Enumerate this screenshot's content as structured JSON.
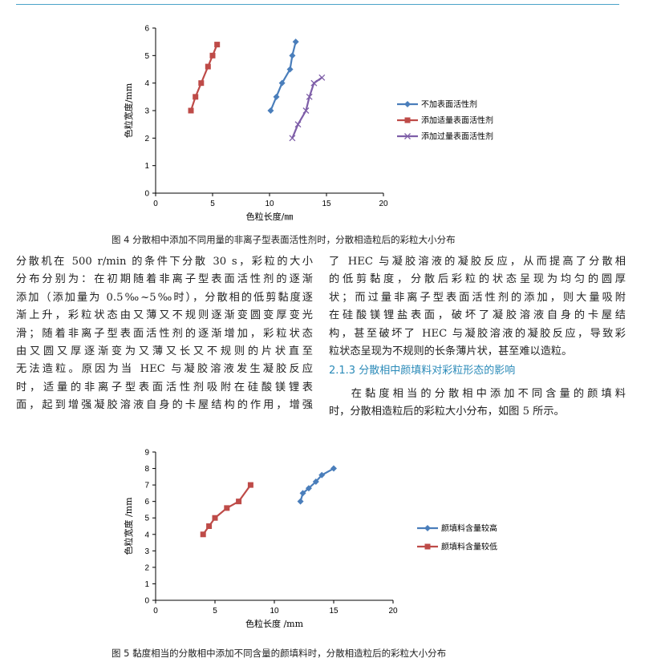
{
  "figure4": {
    "caption": "图 4 分散相中添加不同用量的非离子型表面活性剂时，分散相造粒后的彩粒大小分布",
    "chart_data": {
      "type": "scatter",
      "xlabel": "色粒长度/㎜",
      "ylabel": "色粒宽度/mm",
      "xlim": [
        0,
        20
      ],
      "ylim": [
        0,
        6
      ],
      "xticks": [
        0,
        5,
        10,
        15,
        20
      ],
      "yticks": [
        0,
        1,
        2,
        3,
        4,
        5,
        6
      ],
      "legend_position": "right",
      "grid": false,
      "series": [
        {
          "name": "不加表面活性剂",
          "color": "#4a7ebb",
          "marker": "diamond",
          "x": [
            10.1,
            10.6,
            11.1,
            11.8,
            12.0,
            12.3
          ],
          "y": [
            3.0,
            3.5,
            4.0,
            4.5,
            5.0,
            5.5
          ]
        },
        {
          "name": "添加适量表面活性剂",
          "color": "#be4b48",
          "marker": "square",
          "x": [
            3.1,
            3.5,
            4.0,
            4.6,
            5.0,
            5.4
          ],
          "y": [
            3.0,
            3.5,
            4.0,
            4.6,
            5.0,
            5.4
          ]
        },
        {
          "name": "添加过量表面活性剂",
          "color": "#7e5ea8",
          "marker": "x",
          "x": [
            12.0,
            12.5,
            13.2,
            13.5,
            13.9,
            14.6
          ],
          "y": [
            2.0,
            2.5,
            3.0,
            3.5,
            4.0,
            4.2
          ]
        }
      ]
    }
  },
  "figure5": {
    "caption": "图 5 黏度相当的分散相中添加不同含量的颜填料时，分散相造粒后的彩粒大小分布",
    "chart_data": {
      "type": "scatter",
      "xlabel": "色粒长度 /mm",
      "ylabel": "色粒宽度 /mm",
      "xlim": [
        0,
        20
      ],
      "ylim": [
        0,
        9
      ],
      "xticks": [
        0,
        5,
        10,
        15,
        20
      ],
      "yticks": [
        0,
        1,
        2,
        3,
        4,
        5,
        6,
        7,
        8,
        9
      ],
      "legend_position": "right",
      "grid": false,
      "series": [
        {
          "name": "颜填料含量较高",
          "color": "#4a7ebb",
          "marker": "diamond",
          "x": [
            12.2,
            12.4,
            12.9,
            13.5,
            14.0,
            15.0
          ],
          "y": [
            6.0,
            6.5,
            6.8,
            7.2,
            7.6,
            8.0
          ]
        },
        {
          "name": "颜填料含量较低",
          "color": "#be4b48",
          "marker": "square",
          "x": [
            4.0,
            4.5,
            5.0,
            6.0,
            7.0,
            8.0
          ],
          "y": [
            4.0,
            4.5,
            5.0,
            5.6,
            6.0,
            7.0
          ]
        }
      ]
    }
  },
  "left_column": {
    "lines": [
      "分散机在 500 r/min 的条件下分散 30 s，彩粒的大小",
      "分布分别为：在初期随着非离子型表面活性剂的逐渐",
      "添加（添加量为 0.5‰~5‰时），分散相的低剪黏度逐",
      "渐上升，彩粒状态由又薄又不规则逐渐变圆变厚变光",
      "滑；随着非离子型表面活性剂的逐渐增加，彩粒状态",
      "由又圆又厚逐渐变为又薄又长又不规则的片状直至",
      "无法造粒。原因为当 HEC 与凝胶溶液发生凝胶反应",
      "时，适量的非离子型表面活性剂吸附在硅酸镁锂表",
      "面，起到增强凝胶溶液自身的卡屋结构的作用，增强"
    ]
  },
  "right_column": {
    "lines": [
      "了 HEC 与凝胶溶液的凝胶反应，从而提高了分散相",
      "的低剪黏度，分散后彩粒的状态呈现为均匀的圆厚",
      "状；而过量非离子型表面活性剂的添加，则大量吸附",
      "在硅酸镁锂盐表面，破坏了凝胶溶液自身的卡屋结",
      "构，甚至破坏了 HEC 与凝胶溶液的凝胶反应，导致彩",
      "粒状态呈现为不规则的长条薄片状，甚至难以造粒。"
    ],
    "section_heading": "2.1.3 分散相中颜填料对彩粒形态的影响",
    "para2_lines": [
      "在黏度相当的分散相中添加不同含量的颜填料",
      "时，分散相造粒后的彩粒大小分布，如图 5 所示。"
    ]
  }
}
